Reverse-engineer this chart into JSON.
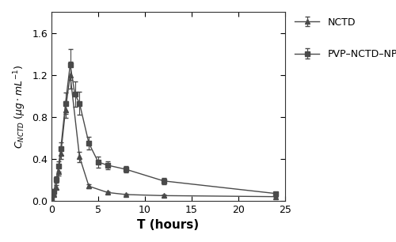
{
  "nctd_t": [
    0,
    0.25,
    0.5,
    0.75,
    1.0,
    1.5,
    2.0,
    3.0,
    4.0,
    6.0,
    8.0,
    12.0,
    24.0
  ],
  "nctd_c": [
    0.02,
    0.06,
    0.13,
    0.28,
    0.45,
    0.87,
    1.2,
    0.42,
    0.14,
    0.08,
    0.06,
    0.05,
    0.04
  ],
  "nctd_err": [
    0.005,
    0.01,
    0.02,
    0.04,
    0.05,
    0.08,
    0.13,
    0.05,
    0.02,
    0.01,
    0.01,
    0.01,
    0.005
  ],
  "pvp_t": [
    0,
    0.25,
    0.5,
    0.75,
    1.0,
    1.5,
    2.0,
    2.5,
    3.0,
    4.0,
    5.0,
    6.0,
    8.0,
    12.0,
    24.0
  ],
  "pvp_c": [
    0.03,
    0.09,
    0.2,
    0.33,
    0.5,
    0.93,
    1.3,
    1.02,
    0.93,
    0.55,
    0.37,
    0.34,
    0.3,
    0.19,
    0.07
  ],
  "pvp_err": [
    0.01,
    0.02,
    0.03,
    0.05,
    0.06,
    0.1,
    0.15,
    0.12,
    0.11,
    0.06,
    0.05,
    0.04,
    0.03,
    0.03,
    0.01
  ],
  "xlabel": "T (hours)",
  "xlim": [
    0,
    25
  ],
  "ylim": [
    0,
    1.8
  ],
  "yticks": [
    0,
    0.4,
    0.8,
    1.2,
    1.6
  ],
  "xticks": [
    0,
    5,
    10,
    15,
    20,
    25
  ],
  "legend_nctd": "NCTD",
  "legend_pvp": "PVP–NCTD–NP",
  "line_color": "#4a4a4a",
  "bg_color": "#ffffff",
  "figsize": [
    5.0,
    3.06
  ],
  "dpi": 100
}
